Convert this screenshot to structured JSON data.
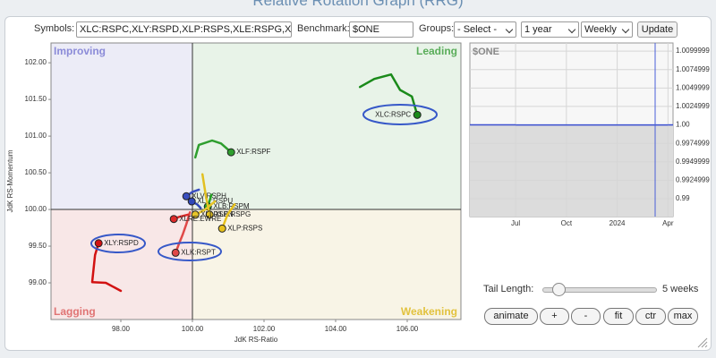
{
  "toolbar": {
    "symbols_label": "Symbols:",
    "symbols_value": "XLC:RSPC,XLY:RSPD,XLP:RSPS,XLE:RSPG,XLF",
    "benchmark_label": "Benchmark:",
    "benchmark_value": "$ONE",
    "groups_label": "Groups:",
    "groups_select": "- Select -",
    "period_select": "1 year",
    "frequency_select": "Weekly",
    "update_button": "Update"
  },
  "controls": {
    "tail_label": "Tail Length:",
    "tail_value": "5 weeks",
    "buttons": [
      "animate",
      "+",
      "-",
      "fit",
      "ctr",
      "max"
    ]
  },
  "chart_data": [
    {
      "type": "rrg",
      "title": "Relative Rotation Graph (RRG)",
      "xlabel": "JdK RS-Ratio",
      "ylabel": "JdK RS-Momentum",
      "xlim": [
        96.05,
        107.5
      ],
      "ylim": [
        98.5,
        102.27
      ],
      "center": [
        100,
        100
      ],
      "xticks": [
        {
          "value": 98,
          "label": "98.00"
        },
        {
          "value": 100,
          "label": "100.00"
        },
        {
          "value": 102,
          "label": "102.00"
        },
        {
          "value": 104,
          "label": "104.00"
        },
        {
          "value": 106,
          "label": "106.00"
        }
      ],
      "yticks": [
        {
          "value": 99,
          "label": "99.00"
        },
        {
          "value": 99.5,
          "label": "99.50"
        },
        {
          "value": 100,
          "label": "100.00"
        },
        {
          "value": 100.5,
          "label": "100.50"
        },
        {
          "value": 101,
          "label": "101.00"
        },
        {
          "value": 101.5,
          "label": "101.50"
        },
        {
          "value": 102,
          "label": "102.00"
        }
      ],
      "quadrants": [
        {
          "name": "Improving",
          "color": "#8b8bd8",
          "fill": "#ececf7"
        },
        {
          "name": "Leading",
          "color": "#5aad5a",
          "fill": "#e8f3e8"
        },
        {
          "name": "Lagging",
          "color": "#e07474",
          "fill": "#f8e7e7"
        },
        {
          "name": "Weakening",
          "color": "#e2c23e",
          "fill": "#f8f4e6"
        }
      ],
      "series": [
        {
          "name": "XLC:RSPC",
          "color": "#1a8a1a",
          "x": [
            104.68,
            105.08,
            105.55,
            105.8,
            106.13,
            106.28
          ],
          "y": [
            101.67,
            101.78,
            101.84,
            101.63,
            101.54,
            101.29
          ]
        },
        {
          "name": "XLF:RSPF",
          "color": "#2e9e2e",
          "x": [
            100.08,
            100.18,
            100.55,
            100.8,
            101.08
          ],
          "y": [
            100.71,
            100.88,
            100.94,
            100.9,
            100.78
          ]
        },
        {
          "name": "XLY:RSPD",
          "color": "#d21212",
          "x": [
            98.0,
            97.58,
            97.2,
            97.28,
            97.38
          ],
          "y": [
            98.89,
            99.0,
            99.01,
            99.38,
            99.54
          ]
        },
        {
          "name": "XLK:RSPT",
          "color": "#e04848",
          "x": [
            99.93,
            99.83,
            99.73,
            99.63,
            99.53
          ],
          "y": [
            99.96,
            99.8,
            99.66,
            99.54,
            99.41
          ]
        },
        {
          "name": "XLV:RSPH",
          "color": "#3a4fc0",
          "x": [
            100.18,
            100.0,
            99.83
          ],
          "y": [
            100.27,
            100.24,
            100.18
          ]
        },
        {
          "name": "XLU:RSPU",
          "color": "#2f48b8",
          "x": [
            100.23,
            100.13,
            99.98
          ],
          "y": [
            100.02,
            100.07,
            100.11
          ]
        },
        {
          "name": "XLB:RSPM",
          "color": "#25a025",
          "x": [
            100.53,
            100.48,
            100.43
          ],
          "y": [
            100.2,
            100.12,
            100.04
          ]
        },
        {
          "name": "XLE:RSPG",
          "color": "#e2c020",
          "x": [
            100.28,
            100.38,
            100.48
          ],
          "y": [
            100.48,
            100.17,
            99.93
          ]
        },
        {
          "name": "XLI:RSPN",
          "color": "#e6c52a",
          "x": [
            100.63,
            100.33,
            100.08
          ],
          "y": [
            100.11,
            99.99,
            99.93
          ]
        },
        {
          "name": "XLRE:EWRE",
          "color": "#dd2a2a",
          "x": [
            99.88,
            99.63,
            99.48
          ],
          "y": [
            99.93,
            99.9,
            99.87
          ]
        },
        {
          "name": "XLP:RSPS",
          "color": "#e8c21c",
          "x": [
            101.18,
            100.98,
            100.83
          ],
          "y": [
            100.07,
            99.93,
            99.74
          ]
        }
      ]
    },
    {
      "type": "area",
      "title": "$ONE",
      "categories": [
        "Jul",
        "Oct",
        "2024",
        "Apr"
      ],
      "values": [
        1,
        1,
        1,
        1
      ],
      "color": "#3a4fd0",
      "fill": "#dcdcdc",
      "ylim": [
        0.98758,
        1.0111
      ],
      "grid": true,
      "yticks": [
        0.99,
        0.9924999,
        0.9949999,
        0.9974999,
        {
          "value": 1,
          "label": "1.00"
        },
        1.0024999,
        1.0049999,
        1.0074999,
        1.0099999
      ]
    }
  ]
}
